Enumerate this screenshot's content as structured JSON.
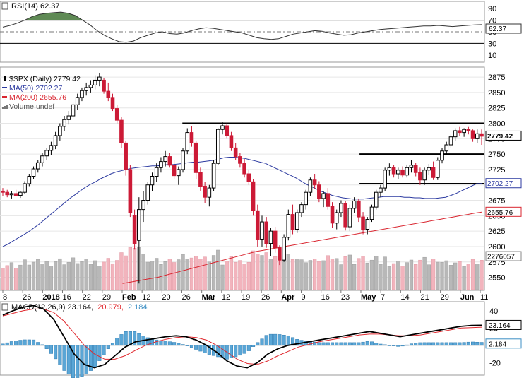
{
  "rsi": {
    "title": "RSI(14) 62.37",
    "value_label": "62.37",
    "value": 62.37,
    "ticks": [
      "90",
      "70",
      "50",
      "30",
      "10"
    ],
    "overbought": 70,
    "oversold": 30,
    "colors": {
      "line": "#333333",
      "overfill": "#5f8a55",
      "ref": "#000000"
    }
  },
  "price": {
    "legend": [
      {
        "text": "$SPX (Daily) 2779.42",
        "color": "#000000",
        "marker": "candle"
      },
      {
        "text": "MA(50) 2702.27",
        "color": "#2c3aa0",
        "marker": "line"
      },
      {
        "text": "MA(200) 2655.76",
        "color": "#d9252f",
        "marker": "line"
      },
      {
        "text": "Volume undef",
        "color": "#555555",
        "marker": "bars"
      }
    ],
    "ticks": [
      "2875",
      "2850",
      "2825",
      "2800",
      "2775",
      "2750",
      "2725",
      "2700",
      "2675",
      "2650",
      "2625",
      "2600",
      "2575",
      "2550"
    ],
    "tags": {
      "last": "2779.42",
      "ma50": "2702.27",
      "ma200": "2655.76",
      "volume": "2276057"
    },
    "resistance_levels": [
      2800,
      2750,
      2702
    ],
    "colors": {
      "up": "#000000",
      "down": "#cc1a36",
      "ma50": "#2c3aa0",
      "ma200": "#d9252f",
      "vol_up": "#b8b8b8",
      "vol_down": "#f2b4bd"
    }
  },
  "dates": {
    "labels": [
      {
        "text": "8",
        "bold": false
      },
      {
        "text": "26",
        "bold": false
      },
      {
        "text": "2018",
        "bold": true
      },
      {
        "text": "16",
        "bold": false
      },
      {
        "text": "22",
        "bold": false
      },
      {
        "text": "29",
        "bold": false
      },
      {
        "text": "Feb",
        "bold": true
      },
      {
        "text": "12",
        "bold": false
      },
      {
        "text": "20",
        "bold": false
      },
      {
        "text": "26",
        "bold": false
      },
      {
        "text": "Mar",
        "bold": true
      },
      {
        "text": "12",
        "bold": false
      },
      {
        "text": "19",
        "bold": false
      },
      {
        "text": "26",
        "bold": false
      },
      {
        "text": "Apr",
        "bold": true
      },
      {
        "text": "9",
        "bold": false
      },
      {
        "text": "16",
        "bold": false
      },
      {
        "text": "23",
        "bold": false
      },
      {
        "text": "May",
        "bold": true
      },
      {
        "text": "7",
        "bold": false
      },
      {
        "text": "14",
        "bold": false
      },
      {
        "text": "21",
        "bold": false
      },
      {
        "text": "29",
        "bold": false
      },
      {
        "text": "Jun",
        "bold": true
      },
      {
        "text": "11",
        "bold": false
      }
    ]
  },
  "macd": {
    "title": "MACD(12,26,9) 23.164, 20.979, 2.184",
    "title_main": "MACD(12,26,9) 23.164,",
    "title_signal": "20.979,",
    "title_hist": "2.184",
    "ticks": [
      "40",
      "20",
      "0",
      "-20"
    ],
    "tags": {
      "macd": "23.164",
      "hist": "2.184"
    },
    "colors": {
      "macd": "#000000",
      "signal": "#e0282e",
      "hist": "#3d8fc4"
    }
  },
  "chart_data": {
    "type": "candlestick",
    "symbol": "$SPX",
    "title": "$SPX (Daily) 2779.42",
    "ylim": [
      2530,
      2890
    ],
    "candles": [
      [
        2690,
        2695,
        2682,
        2688
      ],
      [
        2688,
        2692,
        2680,
        2684
      ],
      [
        2684,
        2690,
        2678,
        2686
      ],
      [
        2686,
        2692,
        2682,
        2683
      ],
      [
        2683,
        2690,
        2679,
        2688
      ],
      [
        2688,
        2706,
        2685,
        2702
      ],
      [
        2702,
        2718,
        2698,
        2714
      ],
      [
        2714,
        2730,
        2710,
        2726
      ],
      [
        2726,
        2740,
        2720,
        2736
      ],
      [
        2736,
        2752,
        2730,
        2747
      ],
      [
        2747,
        2760,
        2740,
        2756
      ],
      [
        2756,
        2770,
        2748,
        2764
      ],
      [
        2764,
        2786,
        2758,
        2780
      ],
      [
        2780,
        2800,
        2772,
        2795
      ],
      [
        2795,
        2812,
        2788,
        2806
      ],
      [
        2806,
        2820,
        2798,
        2812
      ],
      [
        2812,
        2835,
        2806,
        2830
      ],
      [
        2830,
        2848,
        2822,
        2842
      ],
      [
        2842,
        2858,
        2836,
        2853
      ],
      [
        2853,
        2866,
        2845,
        2858
      ],
      [
        2858,
        2870,
        2850,
        2862
      ],
      [
        2862,
        2878,
        2855,
        2870
      ],
      [
        2870,
        2882,
        2860,
        2875
      ],
      [
        2870,
        2874,
        2848,
        2852
      ],
      [
        2852,
        2866,
        2836,
        2842
      ],
      [
        2842,
        2848,
        2820,
        2824
      ],
      [
        2824,
        2830,
        2800,
        2805
      ],
      [
        2805,
        2810,
        2760,
        2768
      ],
      [
        2768,
        2772,
        2715,
        2725
      ],
      [
        2725,
        2732,
        2648,
        2655
      ],
      [
        2650,
        2660,
        2595,
        2605
      ],
      [
        2610,
        2680,
        2540,
        2660
      ],
      [
        2660,
        2690,
        2640,
        2675
      ],
      [
        2675,
        2705,
        2668,
        2700
      ],
      [
        2700,
        2720,
        2690,
        2714
      ],
      [
        2714,
        2735,
        2705,
        2728
      ],
      [
        2728,
        2745,
        2720,
        2738
      ],
      [
        2738,
        2755,
        2730,
        2746
      ],
      [
        2746,
        2752,
        2728,
        2732
      ],
      [
        2732,
        2740,
        2710,
        2715
      ],
      [
        2715,
        2730,
        2700,
        2725
      ],
      [
        2725,
        2760,
        2720,
        2755
      ],
      [
        2755,
        2792,
        2750,
        2785
      ],
      [
        2785,
        2796,
        2762,
        2768
      ],
      [
        2768,
        2772,
        2710,
        2720
      ],
      [
        2720,
        2728,
        2690,
        2698
      ],
      [
        2698,
        2705,
        2670,
        2680
      ],
      [
        2680,
        2700,
        2665,
        2695
      ],
      [
        2695,
        2740,
        2690,
        2735
      ],
      [
        2735,
        2792,
        2732,
        2790
      ],
      [
        2790,
        2802,
        2782,
        2796
      ],
      [
        2796,
        2800,
        2775,
        2780
      ],
      [
        2780,
        2786,
        2755,
        2760
      ],
      [
        2760,
        2768,
        2740,
        2746
      ],
      [
        2746,
        2752,
        2728,
        2735
      ],
      [
        2735,
        2742,
        2712,
        2718
      ],
      [
        2718,
        2725,
        2700,
        2705
      ],
      [
        2705,
        2710,
        2650,
        2658
      ],
      [
        2658,
        2668,
        2600,
        2612
      ],
      [
        2612,
        2650,
        2600,
        2640
      ],
      [
        2640,
        2648,
        2598,
        2605
      ],
      [
        2605,
        2630,
        2585,
        2625
      ],
      [
        2625,
        2632,
        2590,
        2598
      ],
      [
        2598,
        2602,
        2570,
        2578
      ],
      [
        2578,
        2620,
        2575,
        2615
      ],
      [
        2615,
        2660,
        2610,
        2652
      ],
      [
        2652,
        2668,
        2620,
        2628
      ],
      [
        2628,
        2660,
        2622,
        2655
      ],
      [
        2655,
        2672,
        2648,
        2668
      ],
      [
        2668,
        2692,
        2660,
        2688
      ],
      [
        2688,
        2712,
        2682,
        2708
      ],
      [
        2708,
        2718,
        2694,
        2700
      ],
      [
        2700,
        2706,
        2672,
        2678
      ],
      [
        2678,
        2690,
        2664,
        2686
      ],
      [
        2686,
        2695,
        2660,
        2665
      ],
      [
        2665,
        2672,
        2630,
        2638
      ],
      [
        2638,
        2660,
        2628,
        2655
      ],
      [
        2655,
        2675,
        2648,
        2670
      ],
      [
        2670,
        2674,
        2626,
        2632
      ],
      [
        2632,
        2668,
        2625,
        2662
      ],
      [
        2662,
        2680,
        2655,
        2674
      ],
      [
        2674,
        2678,
        2640,
        2648
      ],
      [
        2648,
        2656,
        2620,
        2628
      ],
      [
        2628,
        2648,
        2620,
        2644
      ],
      [
        2644,
        2668,
        2640,
        2664
      ],
      [
        2664,
        2692,
        2660,
        2688
      ],
      [
        2688,
        2700,
        2680,
        2695
      ],
      [
        2695,
        2728,
        2690,
        2724
      ],
      [
        2724,
        2735,
        2715,
        2728
      ],
      [
        2728,
        2732,
        2712,
        2718
      ],
      [
        2718,
        2728,
        2710,
        2724
      ],
      [
        2724,
        2730,
        2712,
        2716
      ],
      [
        2716,
        2733,
        2712,
        2728
      ],
      [
        2728,
        2740,
        2720,
        2732
      ],
      [
        2732,
        2736,
        2714,
        2720
      ],
      [
        2720,
        2728,
        2700,
        2708
      ],
      [
        2708,
        2728,
        2700,
        2724
      ],
      [
        2724,
        2734,
        2716,
        2728
      ],
      [
        2728,
        2738,
        2708,
        2712
      ],
      [
        2712,
        2745,
        2708,
        2740
      ],
      [
        2740,
        2760,
        2735,
        2755
      ],
      [
        2755,
        2770,
        2750,
        2765
      ],
      [
        2765,
        2782,
        2760,
        2778
      ],
      [
        2778,
        2792,
        2772,
        2788
      ],
      [
        2788,
        2794,
        2780,
        2785
      ],
      [
        2785,
        2792,
        2778,
        2790
      ],
      [
        2790,
        2794,
        2782,
        2788
      ],
      [
        2788,
        2790,
        2770,
        2775
      ],
      [
        2775,
        2790,
        2768,
        2783
      ],
      [
        2783,
        2790,
        2765,
        2779
      ]
    ],
    "ma50": [
      2600,
      2604,
      2609,
      2614,
      2619,
      2624,
      2630,
      2636,
      2643,
      2650,
      2657,
      2664,
      2671,
      2678,
      2684,
      2690,
      2696,
      2701,
      2705,
      2710,
      2714,
      2718,
      2721,
      2723,
      2725,
      2727,
      2728,
      2729,
      2730,
      2731,
      2731,
      2732,
      2733,
      2733,
      2734,
      2735,
      2736,
      2737,
      2737,
      2738,
      2739,
      2740,
      2742,
      2744,
      2745,
      2745,
      2744,
      2743,
      2741,
      2739,
      2737,
      2735,
      2731,
      2727,
      2723,
      2719,
      2715,
      2711,
      2706,
      2701,
      2697,
      2693,
      2689,
      2686,
      2683,
      2681,
      2679,
      2678,
      2677,
      2677,
      2677,
      2678,
      2679,
      2680,
      2681,
      2681,
      2681,
      2681,
      2680,
      2680,
      2679,
      2679,
      2678,
      2678,
      2678,
      2679,
      2680,
      2683,
      2686,
      2690,
      2694,
      2698,
      2702,
      2702.27
    ],
    "ma200": [
      2540,
      2542,
      2544,
      2546,
      2548,
      2550,
      2553,
      2556,
      2559,
      2562,
      2565,
      2568,
      2571,
      2574,
      2577,
      2580,
      2583,
      2586,
      2589,
      2592,
      2594,
      2596,
      2598,
      2600,
      2602,
      2604,
      2606,
      2608,
      2610,
      2612,
      2614,
      2616,
      2618,
      2620,
      2622,
      2624,
      2626,
      2628,
      2630,
      2632,
      2634,
      2636,
      2638,
      2640,
      2642,
      2644,
      2646,
      2648,
      2650,
      2652,
      2654,
      2655.76
    ],
    "rsi": [
      58,
      61,
      65,
      70,
      76,
      80,
      82,
      83,
      84,
      82,
      78,
      70,
      62,
      52,
      44,
      38,
      33,
      32,
      34,
      40,
      44,
      48,
      50,
      47,
      46,
      48,
      52,
      55,
      57,
      56,
      54,
      52,
      50,
      48,
      44,
      40,
      38,
      37,
      38,
      42,
      46,
      48,
      50,
      52,
      51,
      48,
      46,
      44,
      45,
      48,
      50,
      52,
      54,
      55,
      56,
      57,
      58,
      59,
      60,
      60,
      61,
      60,
      59,
      60,
      61,
      62,
      62.37
    ],
    "macd": [
      35,
      40,
      44,
      46,
      42,
      30,
      10,
      -10,
      -22,
      -26,
      -22,
      -12,
      -2,
      4,
      6,
      8,
      10,
      11,
      10,
      6,
      0,
      -8,
      -18,
      -24,
      -26,
      -20,
      -10,
      -4,
      0,
      2,
      4,
      6,
      8,
      10,
      12,
      14,
      16,
      14,
      12,
      10,
      12,
      14,
      16,
      18,
      20,
      22,
      23,
      23.164
    ],
    "signal": [
      34,
      37,
      40,
      42,
      42,
      38,
      28,
      14,
      0,
      -10,
      -16,
      -16,
      -12,
      -6,
      0,
      4,
      7,
      9,
      10,
      9,
      6,
      0,
      -8,
      -16,
      -21,
      -22,
      -18,
      -12,
      -7,
      -2,
      1,
      4,
      6,
      8,
      10,
      12,
      13,
      13,
      12,
      11,
      11,
      12,
      14,
      16,
      18,
      20,
      20.5,
      20.979
    ]
  }
}
